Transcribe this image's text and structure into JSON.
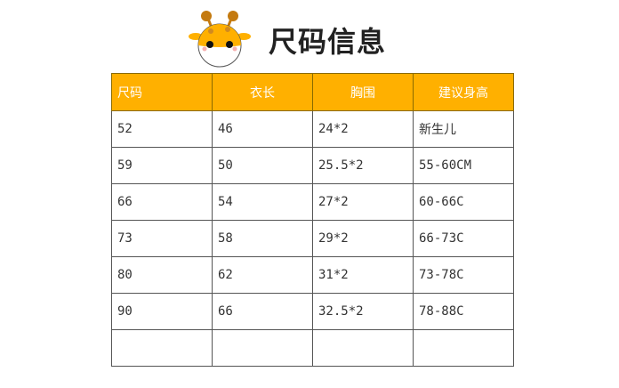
{
  "title": "尺码信息",
  "colors": {
    "header_bg": "#FFB000",
    "header_text": "#FFFFFF"
  },
  "mascot_icon": "giraffe-icon",
  "table": {
    "headers": [
      "尺码",
      "衣长",
      "胸围",
      "建议身高"
    ],
    "rows": [
      [
        "52",
        "46",
        "24*2",
        "新生儿"
      ],
      [
        "59",
        "50",
        "25.5*2",
        "55-60CM"
      ],
      [
        "66",
        "54",
        "27*2",
        "60-66C"
      ],
      [
        "73",
        "58",
        "29*2",
        "66-73C"
      ],
      [
        "80",
        "62",
        "31*2",
        "73-78C"
      ],
      [
        "90",
        "66",
        "32.5*2",
        "78-88C"
      ],
      [
        "",
        "",
        "",
        ""
      ]
    ]
  }
}
